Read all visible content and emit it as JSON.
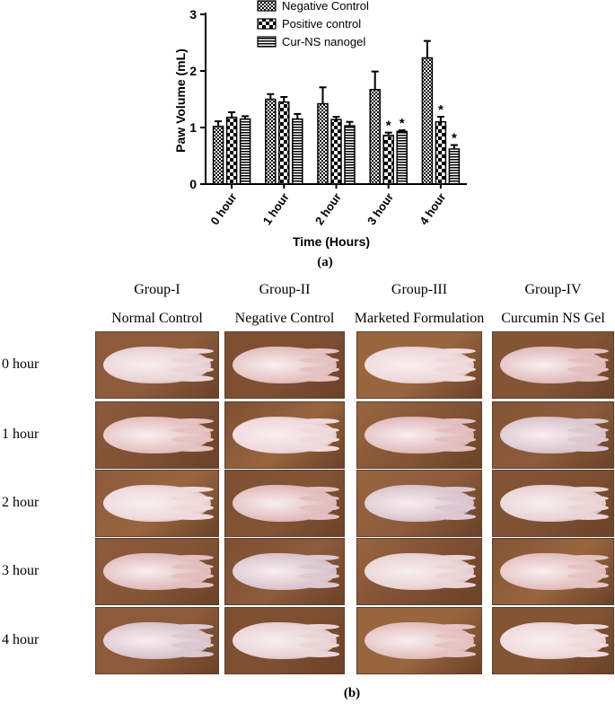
{
  "chart_data": {
    "type": "bar",
    "ylabel": "Paw Volume (mL)",
    "xlabel": "Time (Hours)",
    "categories": [
      "0 hour",
      "1 hour",
      "2 hour",
      "3 hour",
      "4 hour"
    ],
    "yticks": [
      "0",
      "1",
      "2",
      "3"
    ],
    "ylim": [
      0,
      3
    ],
    "grid": false,
    "legend_position": "top",
    "series": [
      {
        "name": "Negative Control",
        "pattern": "checker",
        "values": [
          1.02,
          1.5,
          1.42,
          1.67,
          2.23
        ],
        "errors": [
          0.09,
          0.09,
          0.29,
          0.32,
          0.3
        ],
        "sig": [
          "",
          "",
          "",
          "",
          ""
        ]
      },
      {
        "name": "Positive control",
        "pattern": "large-checker",
        "values": [
          1.18,
          1.45,
          1.14,
          0.86,
          1.1
        ],
        "errors": [
          0.09,
          0.09,
          0.05,
          0.05,
          0.09
        ],
        "sig": [
          "",
          "",
          "",
          "*",
          "*"
        ]
      },
      {
        "name": "Cur-NS nanogel",
        "pattern": "horizontal-stripes",
        "values": [
          1.15,
          1.15,
          1.03,
          0.93,
          0.62
        ],
        "errors": [
          0.05,
          0.09,
          0.07,
          0.02,
          0.07
        ],
        "sig": [
          "",
          "",
          "",
          "*",
          "*"
        ]
      }
    ]
  },
  "panel_a_label": "(a)",
  "panel_b_label": "(b)",
  "groups": [
    {
      "name": "Group-I",
      "desc": "Normal Control"
    },
    {
      "name": "Group-II",
      "desc": "Negative Control"
    },
    {
      "name": "Group-III",
      "desc": "Marketed Formulation"
    },
    {
      "name": "Group-IV",
      "desc": "Curcumin NS Gel"
    }
  ],
  "rows": [
    "0 hour",
    "1 hour",
    "2 hour",
    "3 hour",
    "4 hour"
  ],
  "colors": {
    "bar_stroke": "#000000",
    "pattern_fill": "#000000",
    "wood": "#8a5a3a",
    "skin": "#e8ccd0"
  }
}
